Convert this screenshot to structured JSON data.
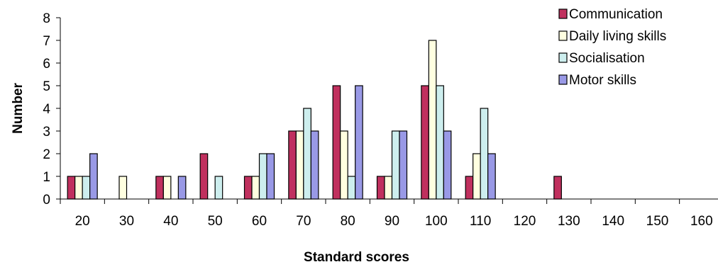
{
  "chart_data": {
    "type": "bar",
    "xlabel": "Standard scores",
    "ylabel": "Number",
    "ylim": [
      0,
      8
    ],
    "yticks": [
      "0",
      "1",
      "2",
      "3",
      "4",
      "5",
      "6",
      "7",
      "8"
    ],
    "categories": [
      "20",
      "30",
      "40",
      "50",
      "60",
      "70",
      "80",
      "90",
      "100",
      "110",
      "120",
      "130",
      "140",
      "150",
      "160"
    ],
    "series": [
      {
        "name": "Communication",
        "color": "#c0305e",
        "values": [
          1,
          0,
          1,
          2,
          1,
          3,
          5,
          1,
          5,
          1,
          0,
          1,
          0,
          0,
          0
        ]
      },
      {
        "name": "Daily living skills",
        "color": "#ffffe0",
        "values": [
          1,
          1,
          1,
          0,
          1,
          3,
          3,
          1,
          7,
          2,
          0,
          0,
          0,
          0,
          0
        ]
      },
      {
        "name": "Socialisation",
        "color": "#cdeeee",
        "values": [
          1,
          0,
          0,
          1,
          2,
          4,
          1,
          3,
          5,
          4,
          0,
          0,
          0,
          0,
          0
        ]
      },
      {
        "name": "Motor skills",
        "color": "#9999e6",
        "values": [
          2,
          0,
          1,
          0,
          2,
          3,
          5,
          3,
          3,
          2,
          0,
          0,
          0,
          0,
          0
        ]
      }
    ],
    "legend_position": "top-right",
    "grid": false
  }
}
